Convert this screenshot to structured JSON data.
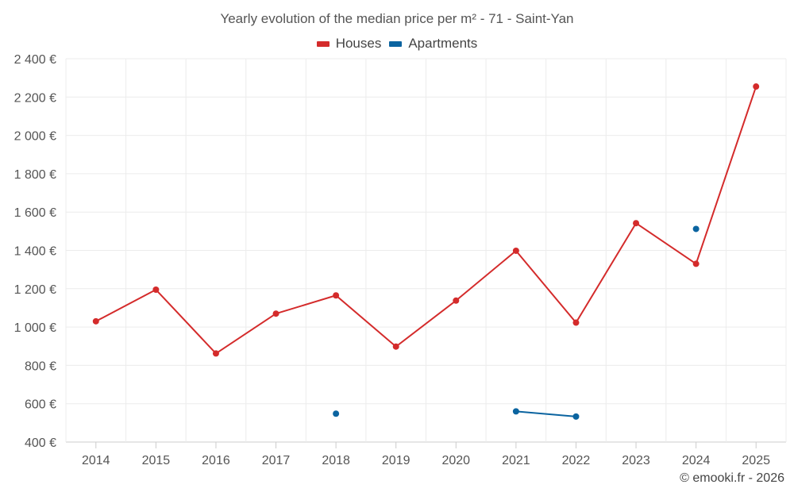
{
  "chart_data": {
    "type": "line",
    "title": "Yearly evolution of the median price per m² - 71 - Saint-Yan",
    "categories": [
      "2014",
      "2015",
      "2016",
      "2017",
      "2018",
      "2019",
      "2020",
      "2021",
      "2022",
      "2023",
      "2024",
      "2025"
    ],
    "series": [
      {
        "name": "Houses",
        "color": "#d42b2b",
        "values": [
          1030,
          1195,
          862,
          1070,
          1165,
          898,
          1138,
          1398,
          1023,
          1542,
          1330,
          2255
        ]
      },
      {
        "name": "Apartments",
        "color": "#0b64a0",
        "values": [
          null,
          null,
          null,
          null,
          548,
          null,
          null,
          560,
          533,
          null,
          1512,
          null
        ]
      }
    ],
    "ylim": [
      400,
      2400
    ],
    "yticks": [
      400,
      600,
      800,
      1000,
      1200,
      1400,
      1600,
      1800,
      2000,
      2200,
      2400
    ],
    "ytick_labels": [
      "400 €",
      "600 €",
      "800 €",
      "1 000 €",
      "1 200 €",
      "1 400 €",
      "1 600 €",
      "1 800 €",
      "2 000 €",
      "2 200 €",
      "2 400 €"
    ],
    "xlabel": "",
    "ylabel": "",
    "grid": true,
    "legend": "top-center"
  },
  "footer": {
    "credit": "© emooki.fr - 2026"
  }
}
